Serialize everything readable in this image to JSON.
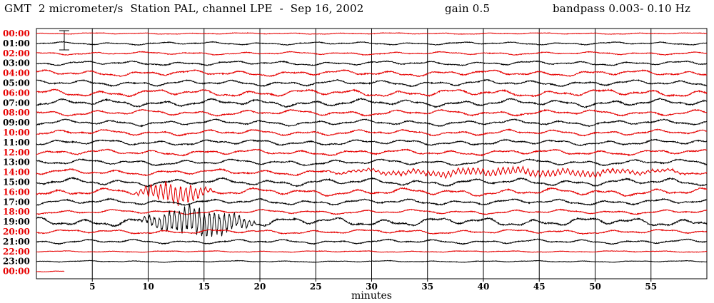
{
  "header": {
    "title": "GMT  2 micrometer/s  Station PAL, channel LPE  -  Sep 16, 2002",
    "gain": "gain 0.5",
    "bandpass": "bandpass 0.003- 0.10 Hz"
  },
  "colors": {
    "red": "#e60000",
    "black": "#000000",
    "grid": "#000000"
  },
  "chart_data": {
    "type": "line",
    "subtype": "helicorder",
    "xlabel": "minutes",
    "xlim": [
      0,
      60
    ],
    "xticks": [
      5,
      10,
      15,
      20,
      25,
      30,
      35,
      40,
      45,
      50,
      55
    ],
    "grid": true,
    "scale_bar": true,
    "rows": [
      {
        "label": "00:00",
        "color": "red"
      },
      {
        "label": "01:00",
        "color": "black"
      },
      {
        "label": "02:00",
        "color": "red"
      },
      {
        "label": "03:00",
        "color": "black"
      },
      {
        "label": "04:00",
        "color": "red"
      },
      {
        "label": "05:00",
        "color": "black"
      },
      {
        "label": "06:00",
        "color": "red"
      },
      {
        "label": "07:00",
        "color": "black"
      },
      {
        "label": "08:00",
        "color": "red"
      },
      {
        "label": "09:00",
        "color": "black"
      },
      {
        "label": "10:00",
        "color": "red"
      },
      {
        "label": "11:00",
        "color": "black"
      },
      {
        "label": "12:00",
        "color": "red"
      },
      {
        "label": "13:00",
        "color": "black"
      },
      {
        "label": "14:00",
        "color": "red"
      },
      {
        "label": "15:00",
        "color": "black"
      },
      {
        "label": "16:00",
        "color": "red"
      },
      {
        "label": "17:00",
        "color": "black"
      },
      {
        "label": "18:00",
        "color": "red"
      },
      {
        "label": "19:00",
        "color": "black"
      },
      {
        "label": "20:00",
        "color": "red"
      },
      {
        "label": "21:00",
        "color": "black"
      },
      {
        "label": "22:00",
        "color": "red"
      },
      {
        "label": "23:00",
        "color": "black"
      },
      {
        "label": "00:00",
        "color": "red",
        "partial_minutes": 2.5
      }
    ],
    "activity": [
      1,
      2,
      2,
      3,
      4,
      4,
      5,
      5,
      4,
      4,
      4,
      4,
      4,
      4,
      4,
      5,
      5,
      4,
      3,
      6,
      3,
      3,
      1,
      1,
      1
    ],
    "events": [
      {
        "row": 16,
        "start_minute": 8.5,
        "end_minute": 16,
        "amplitude": 6
      },
      {
        "row": 19,
        "start_minute": 9,
        "end_minute": 20,
        "amplitude": 8
      },
      {
        "row": 14,
        "start_minute": 25,
        "end_minute": 60,
        "amplitude": 2
      }
    ]
  }
}
